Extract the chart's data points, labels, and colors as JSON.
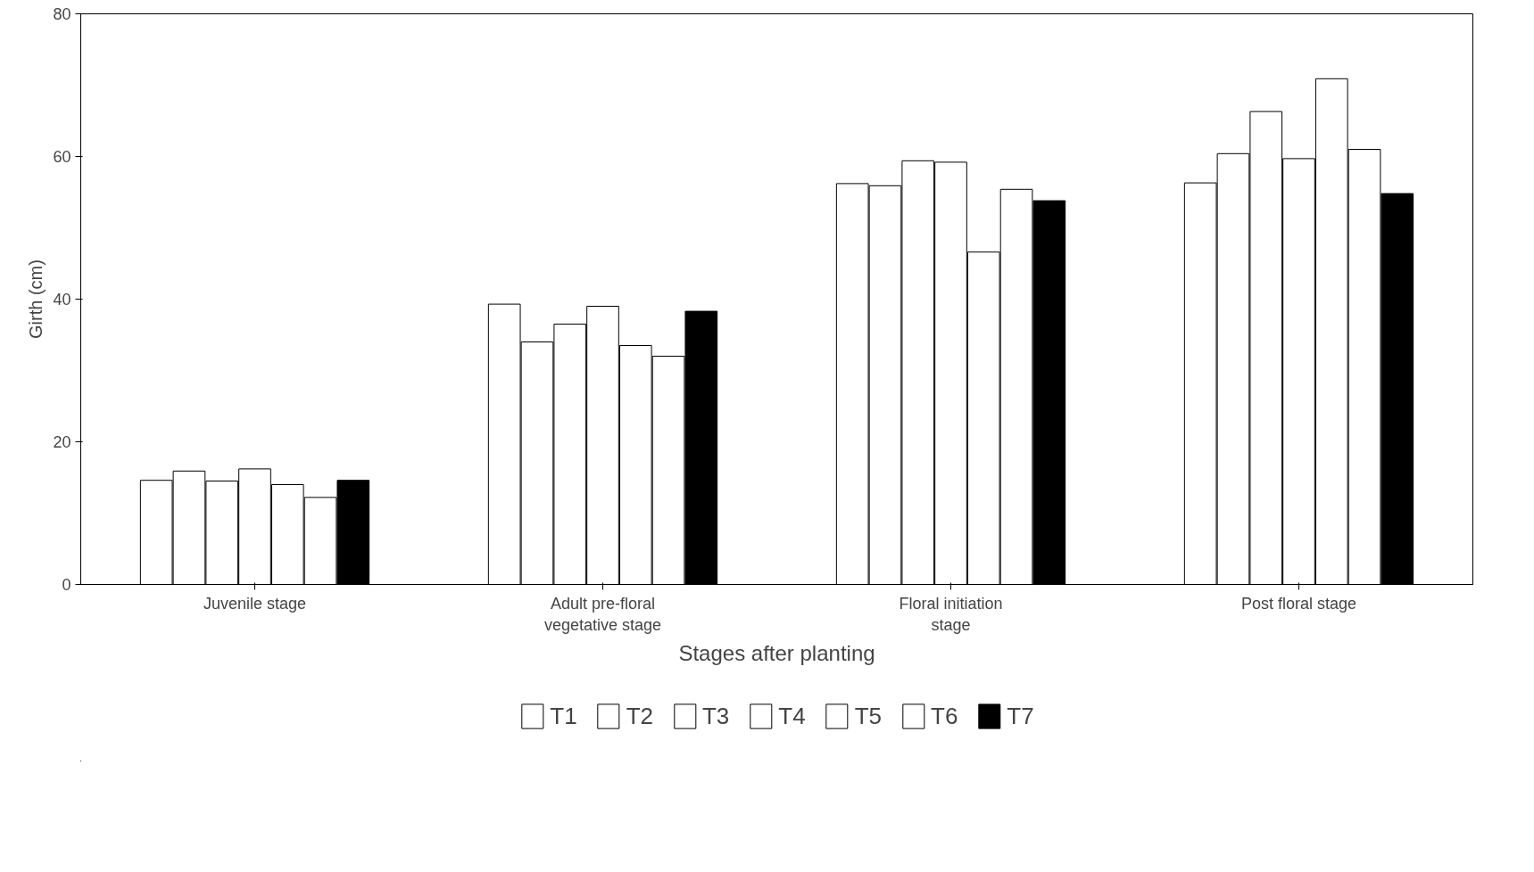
{
  "chart_data": {
    "type": "bar",
    "xlabel": "Stages after planting",
    "ylabel": "Girth (cm)",
    "categories": [
      "Juvenile stage",
      "Adult pre-floral vegetative stage",
      "Floral initiation stage",
      "Post floral stage"
    ],
    "series": [
      {
        "name": "T1",
        "color": "#ffffff",
        "values": [
          14.6,
          39.3,
          56.2,
          56.3
        ]
      },
      {
        "name": "T2",
        "color": "#ffffff",
        "values": [
          15.9,
          34.0,
          55.9,
          60.4
        ]
      },
      {
        "name": "T3",
        "color": "#ffffff",
        "values": [
          14.5,
          36.5,
          59.4,
          66.3
        ]
      },
      {
        "name": "T4",
        "color": "#ffffff",
        "values": [
          16.2,
          39.0,
          59.2,
          59.7
        ]
      },
      {
        "name": "T5",
        "color": "#ffffff",
        "values": [
          14.0,
          33.5,
          46.6,
          70.9
        ]
      },
      {
        "name": "T6",
        "color": "#ffffff",
        "values": [
          12.2,
          32.0,
          55.4,
          61.0
        ]
      },
      {
        "name": "T7",
        "color": "#000000",
        "values": [
          14.6,
          38.3,
          53.8,
          54.8
        ]
      }
    ],
    "ylim": [
      0,
      80
    ],
    "yticks": [
      0,
      20,
      40,
      60,
      80
    ],
    "grid": false,
    "legend": "bottom"
  }
}
